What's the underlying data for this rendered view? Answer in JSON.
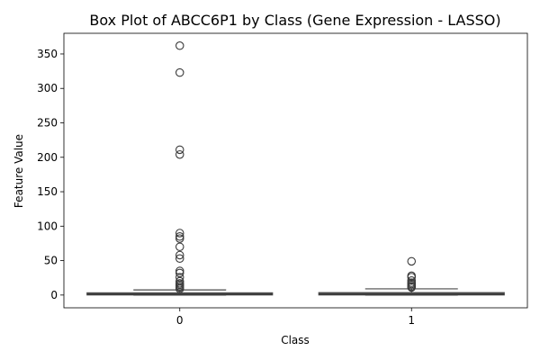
{
  "chart_data": {
    "type": "box",
    "title": "Box Plot of ABCC6P1 by Class (Gene Expression - LASSO)",
    "xlabel": "Class",
    "ylabel": "Feature Value",
    "categories": [
      "0",
      "1"
    ],
    "ylim": [
      -18.5,
      380
    ],
    "yticks": [
      0,
      50,
      100,
      150,
      200,
      250,
      300,
      350
    ],
    "grid": false,
    "box_color": "#4a4a4a",
    "outlier_stroke": "#3a3a3a",
    "boxes": [
      {
        "category": "0",
        "q1": 0.2,
        "median": 1.0,
        "q3": 3.2,
        "whisker_low": 0,
        "whisker_high": 7.5,
        "outliers": [
          362,
          323,
          211,
          204,
          90,
          85,
          82,
          70,
          58,
          53,
          35,
          32,
          26,
          20,
          17,
          15,
          13,
          11,
          9
        ]
      },
      {
        "category": "1",
        "q1": 0.2,
        "median": 1.0,
        "q3": 3.5,
        "whisker_low": 0,
        "whisker_high": 9.0,
        "outliers": [
          49,
          28,
          26,
          21,
          18,
          16,
          14,
          12,
          11
        ]
      }
    ]
  }
}
